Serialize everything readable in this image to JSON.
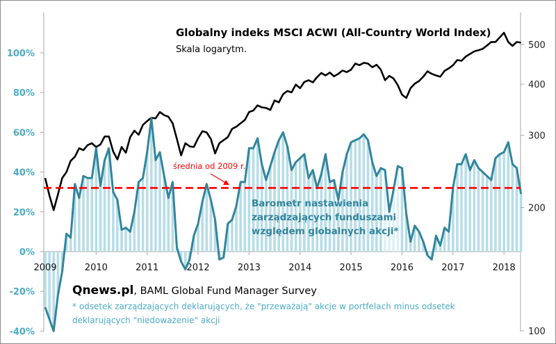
{
  "chart_data": {
    "type": "line",
    "title": "Globalny indeks MSCI ACWI (All-Country World Index)",
    "subtitle": "Skala logarytm.",
    "x_ticks": [
      "2009",
      "2010",
      "2011",
      "2012",
      "2013",
      "2014",
      "2015",
      "2016",
      "2017",
      "2018"
    ],
    "x_range": [
      "2009-01",
      "2018-04"
    ],
    "left_axis": {
      "ticks": [
        "-40%",
        "-20%",
        "0%",
        "20%",
        "40%",
        "60%",
        "80%",
        "100%"
      ],
      "tick_values": [
        -40,
        -20,
        0,
        20,
        40,
        60,
        80,
        100
      ],
      "range": [
        -40,
        110
      ],
      "color": "#4bacc6"
    },
    "right_axis": {
      "scale": "log",
      "ticks": [
        "100",
        "200",
        "300",
        "400",
        "500"
      ],
      "tick_values": [
        100,
        200,
        300,
        400,
        500
      ],
      "range": [
        100,
        560
      ]
    },
    "average_line": {
      "label": "średnia od 2009 r.",
      "value": 32,
      "color": "#ff0000",
      "style": "dashed"
    },
    "series": [
      {
        "name": "Barometr nastawienia zarządzających funduszami względem globalnych akcji*",
        "axis": "left",
        "unit": "%",
        "color": "#31859c",
        "fill_color": "#b7dde8",
        "start": "2009-01",
        "frequency": "monthly",
        "values": [
          -28,
          -34,
          -40,
          -22,
          -10,
          9,
          7,
          34,
          27,
          38,
          37,
          37,
          52,
          33,
          46,
          52,
          30,
          26,
          11,
          12,
          10,
          20,
          35,
          37,
          50,
          67,
          46,
          50,
          38,
          27,
          35,
          2,
          -5,
          -9,
          -4,
          8,
          14,
          25,
          34,
          26,
          16,
          -4,
          -3,
          14,
          16,
          23,
          35,
          35,
          52,
          52,
          57,
          44,
          36,
          43,
          50,
          56,
          60,
          53,
          41,
          45,
          47,
          49,
          37,
          41,
          32,
          39,
          49,
          35,
          36,
          26,
          40,
          49,
          55,
          56,
          57,
          59,
          56,
          45,
          38,
          42,
          41,
          20,
          31,
          43,
          42,
          19,
          5,
          13,
          10,
          5,
          -2,
          -4,
          8,
          3,
          12,
          10,
          32,
          44,
          44,
          49,
          41,
          46,
          42,
          40,
          38,
          36,
          47,
          49,
          50,
          55,
          44,
          42,
          29
        ]
      },
      {
        "name": "MSCI ACWI",
        "axis": "right",
        "color": "#000000",
        "start": "2009-01",
        "frequency": "monthly",
        "values": [
          236,
          214,
          197,
          215,
          236,
          244,
          260,
          266,
          279,
          276,
          284,
          287,
          281,
          285,
          298,
          298,
          274,
          262,
          281,
          272,
          297,
          308,
          301,
          318,
          325,
          331,
          330,
          342,
          336,
          333,
          321,
          294,
          268,
          287,
          282,
          281,
          295,
          307,
          305,
          294,
          271,
          287,
          292,
          297,
          311,
          315,
          321,
          327,
          342,
          345,
          355,
          351,
          350,
          346,
          365,
          361,
          378,
          385,
          382,
          399,
          391,
          405,
          409,
          404,
          416,
          426,
          420,
          427,
          418,
          424,
          432,
          428,
          434,
          449,
          445,
          451,
          449,
          440,
          446,
          434,
          409,
          419,
          413,
          398,
          377,
          370,
          391,
          401,
          407,
          417,
          430,
          424,
          420,
          417,
          431,
          437,
          445,
          458,
          456,
          467,
          474,
          481,
          484,
          488,
          497,
          507,
          507,
          520,
          534,
          507,
          496,
          507,
          505
        ]
      }
    ],
    "annotations": {
      "barometer_label": [
        "Barometr nastawienia",
        "zarządzających funduszami",
        "względem globalnych akcji*"
      ],
      "source_brand": "Qnews.pl",
      "source_text": ", BAML Global Fund Manager Survey",
      "footnote_line1": "* odsetek zarządzających deklarujących, że \"przeważają\"  akcje w portfelach minus odsetek",
      "footnote_line2": "deklarujących \"niedoważenie\" akcji"
    }
  }
}
